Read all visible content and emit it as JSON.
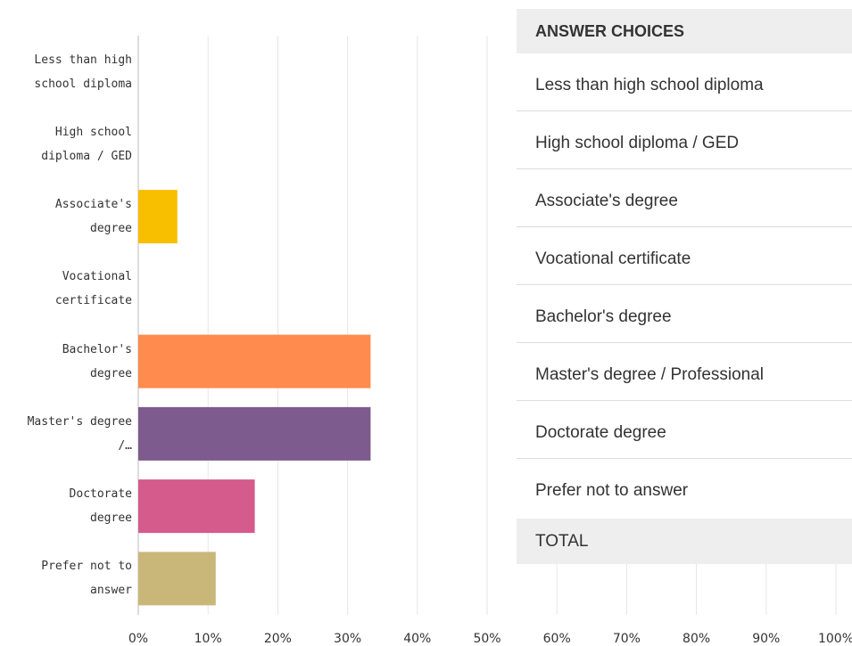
{
  "chart_data": {
    "type": "bar",
    "orientation": "horizontal",
    "categories": [
      "Less than high school diploma",
      "High school diploma / GED",
      "Associate's degree",
      "Vocational certificate",
      "Bachelor's degree",
      "Master's degree /…",
      "Doctorate degree",
      "Prefer not to answer"
    ],
    "values": [
      0,
      0,
      5.6,
      0,
      33.3,
      33.3,
      16.7,
      11.1
    ],
    "colors": [
      null,
      null,
      "#f8be00",
      null,
      "#ff8b4f",
      "#7d5b8e",
      "#d45b8b",
      "#c9b77a"
    ],
    "xlim": [
      0,
      100
    ],
    "xticks": [
      {
        "value": 0,
        "label": "0%"
      },
      {
        "value": 10,
        "label": "10%"
      },
      {
        "value": 20,
        "label": "20%"
      },
      {
        "value": 30,
        "label": "30%"
      },
      {
        "value": 40,
        "label": "40%"
      },
      {
        "value": 50,
        "label": "50%"
      },
      {
        "value": 60,
        "label": "60%"
      },
      {
        "value": 70,
        "label": "70%"
      },
      {
        "value": 80,
        "label": "80%"
      },
      {
        "value": 90,
        "label": "90%"
      },
      {
        "value": 100,
        "label": "100%"
      }
    ],
    "grid": true
  },
  "table": {
    "header": "ANSWER CHOICES",
    "rows": [
      "Less than high school diploma",
      "High school diploma / GED",
      "Associate's degree",
      "Vocational certificate",
      "Bachelor's degree",
      "Master's degree / Professional",
      "Doctorate degree",
      "Prefer not to answer"
    ],
    "total": "TOTAL"
  }
}
